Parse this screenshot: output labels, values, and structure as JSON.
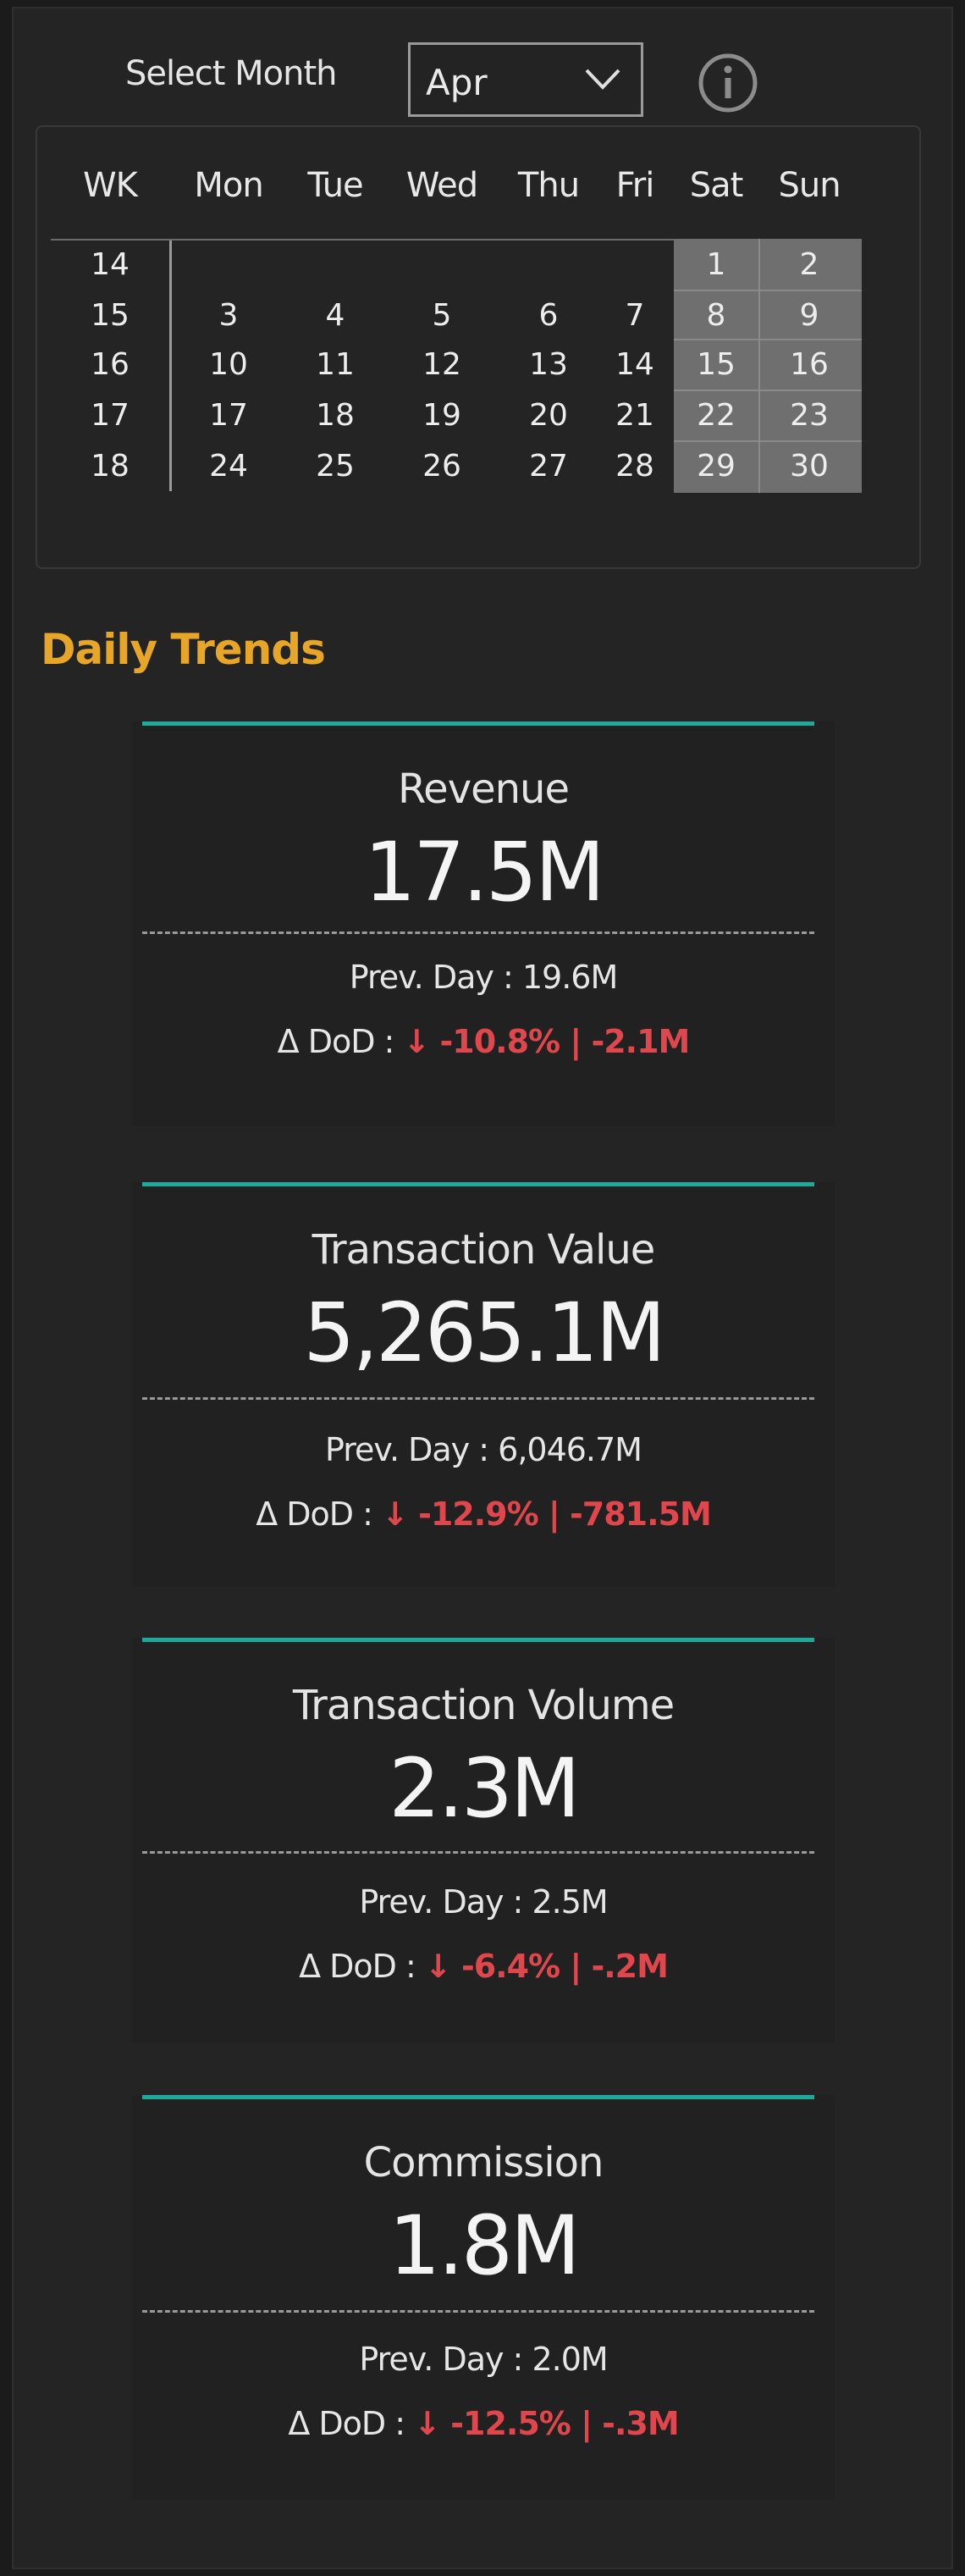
{
  "header": {
    "select_month_label": "Select Month",
    "selected_month": "Apr"
  },
  "calendar": {
    "headers": [
      "WK",
      "Mon",
      "Tue",
      "Wed",
      "Thu",
      "Fri",
      "Sat",
      "Sun"
    ],
    "rows": [
      [
        "14",
        "",
        "",
        "",
        "",
        "",
        "1",
        "2"
      ],
      [
        "15",
        "3",
        "4",
        "5",
        "6",
        "7",
        "8",
        "9"
      ],
      [
        "16",
        "10",
        "11",
        "12",
        "13",
        "14",
        "15",
        "16"
      ],
      [
        "17",
        "17",
        "18",
        "19",
        "20",
        "21",
        "22",
        "23"
      ],
      [
        "18",
        "24",
        "25",
        "26",
        "27",
        "28",
        "29",
        "30"
      ]
    ]
  },
  "section": {
    "title": "Daily Trends"
  },
  "cards": [
    {
      "title": "Revenue",
      "value": "17.5M",
      "prev_label": "Prev. Day :",
      "prev_value": "19.6M",
      "delta_label": "Δ DoD :",
      "delta_value": "↓ -10.8% | -2.1M"
    },
    {
      "title": "Transaction Value",
      "value": "5,265.1M",
      "prev_label": "Prev. Day :",
      "prev_value": "6,046.7M",
      "delta_label": "Δ DoD :",
      "delta_value": "↓ -12.9% | -781.5M"
    },
    {
      "title": "Transaction Volume",
      "value": "2.3M",
      "prev_label": "Prev. Day :",
      "prev_value": "2.5M",
      "delta_label": "Δ DoD :",
      "delta_value": "↓ -6.4% | -.2M"
    },
    {
      "title": "Commission",
      "value": "1.8M",
      "prev_label": "Prev. Day :",
      "prev_value": "2.0M",
      "delta_label": "Δ DoD :",
      "delta_value": "↓ -12.5% | -.3M"
    }
  ],
  "colors": {
    "accent_teal": "#1fa99a",
    "heading_orange": "#e8a628",
    "negative_red": "#e0474c",
    "weekend_gray": "#6f6f6f"
  }
}
